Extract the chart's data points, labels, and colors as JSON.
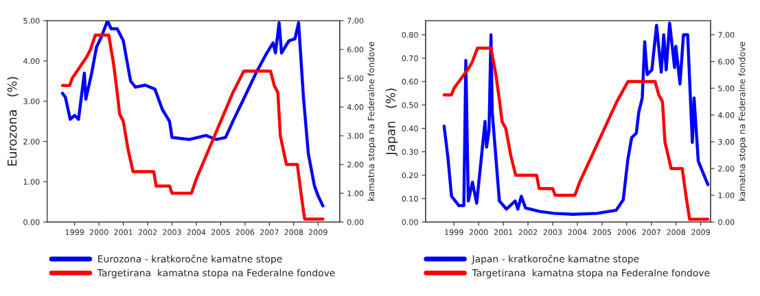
{
  "chart_data": [
    {
      "type": "line",
      "ylabel": "Eurozona   (%)",
      "y2label": "kamatna stopa na Federalne fondove",
      "legend": "bottom",
      "grid": false,
      "marker": "none",
      "line_style": "solid",
      "xlim": [
        1998.37,
        2010.39
      ],
      "ylim": [
        0,
        5
      ],
      "y2lim": [
        0,
        7
      ],
      "xticks": [
        {
          "value": 1999.5,
          "label": "1999"
        },
        {
          "value": 2000.5,
          "label": "2000"
        },
        {
          "value": 2001.5,
          "label": "2001"
        },
        {
          "value": 2002.5,
          "label": "2002"
        },
        {
          "value": 2003.5,
          "label": "2003"
        },
        {
          "value": 2004.5,
          "label": "2004"
        },
        {
          "value": 2005.5,
          "label": "2005"
        },
        {
          "value": 2006.5,
          "label": "2006"
        },
        {
          "value": 2007.5,
          "label": "2007"
        },
        {
          "value": 2008.5,
          "label": "2008"
        },
        {
          "value": 2009.5,
          "label": "2009"
        }
      ],
      "yticks": [
        {
          "value": 0,
          "label": "0.00"
        },
        {
          "value": 1,
          "label": "1.00"
        },
        {
          "value": 2,
          "label": "2.00"
        },
        {
          "value": 3,
          "label": "3.00"
        },
        {
          "value": 4,
          "label": "4.00"
        },
        {
          "value": 5,
          "label": "5.00"
        }
      ],
      "y2ticks": [
        {
          "value": 0,
          "label": "0.00"
        },
        {
          "value": 1,
          "label": "1.00"
        },
        {
          "value": 2,
          "label": "2.00"
        },
        {
          "value": 3,
          "label": "3.00"
        },
        {
          "value": 4,
          "label": "4.00"
        },
        {
          "value": 5,
          "label": "5.00"
        },
        {
          "value": 6,
          "label": "6.00"
        },
        {
          "value": 7,
          "label": "7.00"
        }
      ],
      "series": [
        {
          "name": "Eurozona - kratkoročne kamatne stope",
          "color": "#0000ff",
          "x": [
            1999.0,
            1999.12,
            1999.32,
            1999.5,
            1999.66,
            1999.9,
            1999.96,
            2000.2,
            2000.4,
            2000.6,
            2000.85,
            2001.0,
            2001.25,
            2001.5,
            2001.8,
            2002.0,
            2002.4,
            2002.8,
            2003.1,
            2003.4,
            2003.5,
            2004.2,
            2004.9,
            2005.3,
            2005.7,
            2006.0,
            2006.4,
            2006.95,
            2007.35,
            2007.65,
            2007.75,
            2007.9,
            2008.0,
            2008.3,
            2008.55,
            2008.7,
            2008.9,
            2009.1,
            2009.35,
            2009.5,
            2009.7
          ],
          "values": [
            3.2,
            3.1,
            2.55,
            2.65,
            2.55,
            3.7,
            3.05,
            3.7,
            4.35,
            4.6,
            5.0,
            4.8,
            4.8,
            4.5,
            3.5,
            3.35,
            3.4,
            3.3,
            2.8,
            2.5,
            2.1,
            2.05,
            2.15,
            2.05,
            2.1,
            2.5,
            3.0,
            3.7,
            4.15,
            4.45,
            4.2,
            4.95,
            4.2,
            4.5,
            4.55,
            4.95,
            3.1,
            1.7,
            0.9,
            0.65,
            0.4
          ]
        },
        {
          "name": "Targetirana  kamatna stopa na Federalne fondove",
          "color": "#ff0000",
          "axis": "y2",
          "x": [
            1999.0,
            1999.3,
            1999.4,
            1999.6,
            1999.8,
            2000.0,
            2000.15,
            2000.35,
            2000.9,
            2001.0,
            2001.1,
            2001.25,
            2001.35,
            2001.5,
            2001.7,
            2001.9,
            2002.75,
            2002.85,
            2003.4,
            2003.5,
            2004.3,
            2004.5,
            2005.0,
            2005.5,
            2006.0,
            2006.45,
            2007.55,
            2007.7,
            2007.85,
            2007.95,
            2008.2,
            2008.65,
            2008.8,
            2008.95,
            2009.7
          ],
          "values": [
            4.75,
            4.75,
            5.0,
            5.25,
            5.5,
            5.75,
            6.0,
            6.5,
            6.5,
            6.0,
            5.5,
            4.5,
            3.75,
            3.5,
            2.5,
            1.75,
            1.75,
            1.25,
            1.25,
            1.0,
            1.0,
            1.5,
            2.5,
            3.5,
            4.5,
            5.25,
            5.25,
            4.75,
            4.5,
            3.0,
            2.0,
            2.0,
            1.0,
            0.1,
            0.1
          ]
        }
      ]
    },
    {
      "type": "line",
      "ylabel": "Japan   (%)",
      "y2label": "kamatna stopa na Federalne fondove",
      "legend": "bottom",
      "grid": false,
      "marker": "none",
      "line_style": "solid",
      "xlim": [
        1998.35,
        2009.9
      ],
      "ylim": [
        0,
        0.86
      ],
      "y2lim": [
        0,
        7.525
      ],
      "xticks": [
        {
          "value": 1999.5,
          "label": "1999"
        },
        {
          "value": 2000.5,
          "label": "2000"
        },
        {
          "value": 2001.5,
          "label": "2001"
        },
        {
          "value": 2002.5,
          "label": "2002"
        },
        {
          "value": 2003.5,
          "label": "2003"
        },
        {
          "value": 2004.5,
          "label": "2004"
        },
        {
          "value": 2005.5,
          "label": "2005"
        },
        {
          "value": 2006.5,
          "label": "2006"
        },
        {
          "value": 2007.5,
          "label": "2007"
        },
        {
          "value": 2008.5,
          "label": "2008"
        },
        {
          "value": 2009.5,
          "label": "2009"
        }
      ],
      "yticks": [
        {
          "value": 0,
          "label": "0.00"
        },
        {
          "value": 0.1,
          "label": "0.10"
        },
        {
          "value": 0.2,
          "label": "0.20"
        },
        {
          "value": 0.3,
          "label": "0.30"
        },
        {
          "value": 0.4,
          "label": "0.40"
        },
        {
          "value": 0.5,
          "label": "0.50"
        },
        {
          "value": 0.6,
          "label": "0.60"
        },
        {
          "value": 0.7,
          "label": "0.70"
        },
        {
          "value": 0.8,
          "label": "0.80"
        }
      ],
      "y2ticks": [
        {
          "value": 0,
          "label": "0.00"
        },
        {
          "value": 1,
          "label": "1.00"
        },
        {
          "value": 2,
          "label": "2.00"
        },
        {
          "value": 3,
          "label": "3.00"
        },
        {
          "value": 4,
          "label": "4.00"
        },
        {
          "value": 5,
          "label": "5.00"
        },
        {
          "value": 6,
          "label": "6.00"
        },
        {
          "value": 7,
          "label": "7.00"
        }
      ],
      "series": [
        {
          "name": "Japan - kratkoročne kamatne stope",
          "color": "#0000ff",
          "x": [
            1999.1,
            1999.26,
            1999.4,
            1999.7,
            1999.9,
            1999.98,
            2000.08,
            2000.25,
            2000.42,
            2000.76,
            2000.82,
            2000.92,
            2001.0,
            2001.05,
            2001.34,
            2001.63,
            2001.98,
            2002.09,
            2002.23,
            2002.4,
            2002.98,
            2003.56,
            2004.33,
            2005.3,
            2006.07,
            2006.36,
            2006.55,
            2006.7,
            2006.89,
            2006.99,
            2007.13,
            2007.23,
            2007.33,
            2007.52,
            2007.71,
            2007.9,
            2008.0,
            2008.1,
            2008.24,
            2008.44,
            2008.49,
            2008.66,
            2008.8,
            2008.97,
            2009.16,
            2009.23,
            2009.4,
            2009.79
          ],
          "values": [
            0.41,
            0.27,
            0.11,
            0.07,
            0.07,
            0.69,
            0.09,
            0.17,
            0.08,
            0.43,
            0.32,
            0.39,
            0.8,
            0.47,
            0.09,
            0.055,
            0.09,
            0.055,
            0.11,
            0.06,
            0.045,
            0.037,
            0.033,
            0.037,
            0.05,
            0.095,
            0.27,
            0.36,
            0.38,
            0.47,
            0.53,
            0.77,
            0.63,
            0.65,
            0.84,
            0.64,
            0.8,
            0.65,
            0.85,
            0.66,
            0.75,
            0.59,
            0.8,
            0.8,
            0.34,
            0.53,
            0.26,
            0.16
          ]
        },
        {
          "name": "Targetirana  kamatna stopa na Federalne fondove",
          "color": "#ff0000",
          "axis": "y2",
          "x": [
            1999.1,
            1999.4,
            1999.5,
            1999.7,
            1999.9,
            2000.1,
            2000.25,
            2000.45,
            2001.0,
            2001.1,
            2001.2,
            2001.35,
            2001.45,
            2001.6,
            2001.8,
            2002.0,
            2002.85,
            2002.95,
            2003.5,
            2003.6,
            2004.4,
            2004.6,
            2005.1,
            2005.6,
            2006.1,
            2006.55,
            2007.65,
            2007.8,
            2007.95,
            2008.05,
            2008.3,
            2008.75,
            2008.9,
            2009.05,
            2009.79
          ],
          "values": [
            4.75,
            4.75,
            5.0,
            5.25,
            5.5,
            5.75,
            6.0,
            6.5,
            6.5,
            6.0,
            5.5,
            4.5,
            3.75,
            3.5,
            2.5,
            1.75,
            1.75,
            1.25,
            1.25,
            1.0,
            1.0,
            1.5,
            2.5,
            3.5,
            4.5,
            5.25,
            5.25,
            4.75,
            4.5,
            3.0,
            2.0,
            2.0,
            1.0,
            0.1,
            0.1
          ]
        }
      ]
    }
  ]
}
